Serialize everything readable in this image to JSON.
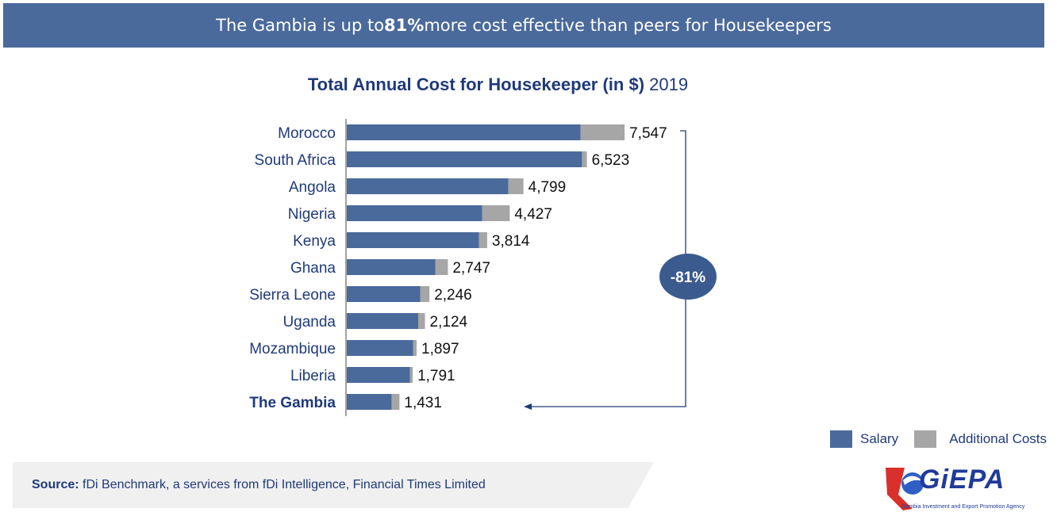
{
  "banner": {
    "prefix": "The Gambia is up to ",
    "highlight": "81%",
    "suffix": " more cost effective than peers for Housekeepers"
  },
  "chart_data": {
    "type": "bar",
    "orientation": "horizontal",
    "stacked": true,
    "title": "Total Annual Cost for Housekeeper (in $)",
    "title_suffix": "2019",
    "categories": [
      "Morocco",
      "South Africa",
      "Angola",
      "Nigeria",
      "Kenya",
      "Ghana",
      "Sierra Leone",
      "Uganda",
      "Mozambique",
      "Liberia ",
      "The Gambia"
    ],
    "highlight_category": "The Gambia",
    "totals": [
      7547,
      6523,
      4799,
      4427,
      3814,
      2747,
      2246,
      2124,
      1897,
      1791,
      1431
    ],
    "total_labels": [
      "7,547",
      "6,523",
      "4,799",
      "4,427",
      "3,814",
      "2,747",
      "2,246",
      "2,124",
      "1,897",
      "1,791",
      "1,431"
    ],
    "series": [
      {
        "name": "Salary",
        "color": "#4a6a9c",
        "values": [
          6350,
          6390,
          4390,
          3680,
          3590,
          2410,
          2000,
          1940,
          1800,
          1720,
          1220
        ]
      },
      {
        "name": "Additional Costs",
        "color": "#a6a6a6",
        "values": [
          1197,
          133,
          409,
          747,
          224,
          337,
          246,
          184,
          97,
          71,
          211
        ]
      }
    ],
    "xlim": [
      0,
      8000
    ],
    "grid": false,
    "legend": "bottom-right",
    "annotation": "-81%"
  },
  "source": {
    "label": "Source:",
    "text": " fDi Benchmark, a services from fDi Intelligence, Financial Times Limited"
  },
  "logo": {
    "name": "GiEPA",
    "subtitle": "Gambia Investment and Export Promotion Agency"
  }
}
